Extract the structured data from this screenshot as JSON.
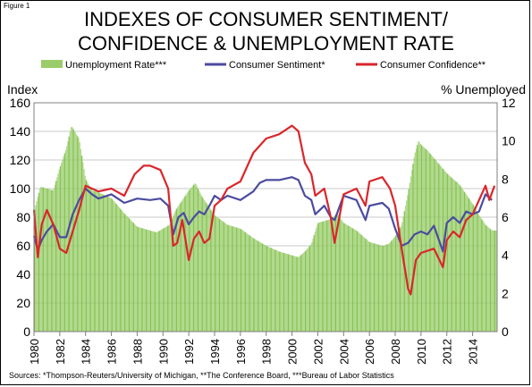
{
  "figure_label": "Figure 1",
  "title_line1": "INDEXES OF CONSUMER SENTIMENT/",
  "title_line2": "CONFIDENCE & UNEMPLOYMENT RATE",
  "source": "Sources:  *Thompson-Reuters/University of Michigan,  **The Conference Board,  ***Bureau of Labor Statistics",
  "colors": {
    "unemployment": "#9ACD6A",
    "sentiment": "#4B4BA0",
    "confidence": "#D9262B",
    "grid": "#c8c8c8"
  },
  "chart_data": {
    "type": "line",
    "ylabel_left": "Index",
    "ylabel_right": "% Unemployed",
    "ylim_left": [
      0,
      160
    ],
    "ylim_right": [
      0,
      12
    ],
    "yticks_left": [
      "0",
      "20",
      "40",
      "60",
      "80",
      "100",
      "120",
      "140",
      "160"
    ],
    "yticks_right": [
      "0",
      "2",
      "4",
      "6",
      "8",
      "10",
      "12"
    ],
    "xlim": [
      1980,
      2015.9
    ],
    "xticks": [
      "1980",
      "1982",
      "1984",
      "1986",
      "1988",
      "1990",
      "1992",
      "1994",
      "1996",
      "1998",
      "2000",
      "2002",
      "2004",
      "2006",
      "2008",
      "2010",
      "2012",
      "2014"
    ],
    "grid": "horizontal",
    "legend_position": "top",
    "series": [
      {
        "name": "Unemployment Rate***",
        "type": "area",
        "axis": "right",
        "x": [
          1980.0,
          1980.5,
          1981.0,
          1981.5,
          1982.0,
          1982.5,
          1982.9,
          1983.5,
          1984.0,
          1984.5,
          1985.0,
          1986.0,
          1987.0,
          1988.0,
          1989.0,
          1989.5,
          1990.0,
          1990.5,
          1991.0,
          1991.5,
          1992.0,
          1992.5,
          1993.0,
          1994.0,
          1995.0,
          1996.0,
          1997.0,
          1998.0,
          1999.0,
          2000.0,
          2000.5,
          2001.0,
          2001.5,
          2002.0,
          2002.5,
          2003.0,
          2003.5,
          2004.0,
          2005.0,
          2006.0,
          2007.0,
          2007.5,
          2008.0,
          2008.5,
          2009.0,
          2009.5,
          2009.8,
          2010.0,
          2010.5,
          2011.0,
          2012.0,
          2013.0,
          2014.0,
          2014.5,
          2015.0,
          2015.5
        ],
        "values": [
          6.3,
          7.6,
          7.5,
          7.4,
          8.6,
          9.6,
          10.8,
          10.1,
          8.0,
          7.4,
          7.3,
          7.0,
          6.2,
          5.5,
          5.3,
          5.2,
          5.4,
          5.6,
          6.4,
          6.9,
          7.4,
          7.8,
          7.1,
          6.1,
          5.6,
          5.4,
          4.9,
          4.5,
          4.2,
          4.0,
          3.9,
          4.2,
          4.6,
          5.7,
          5.8,
          5.9,
          6.2,
          5.7,
          5.3,
          4.7,
          4.5,
          4.6,
          5.0,
          5.6,
          7.3,
          9.3,
          10.0,
          9.8,
          9.5,
          9.1,
          8.3,
          7.7,
          6.7,
          6.1,
          5.6,
          5.3
        ]
      },
      {
        "name": "Consumer Sentiment*",
        "type": "line",
        "axis": "left",
        "x": [
          1980.0,
          1980.3,
          1980.6,
          1981.0,
          1981.5,
          1982.0,
          1982.5,
          1983.0,
          1983.5,
          1984.0,
          1984.5,
          1985.0,
          1986.0,
          1987.0,
          1988.0,
          1989.0,
          1989.8,
          1990.4,
          1990.8,
          1991.2,
          1991.6,
          1992.0,
          1992.4,
          1992.8,
          1993.2,
          1993.6,
          1994.0,
          1994.5,
          1995.0,
          1996.0,
          1997.0,
          1997.5,
          1998.0,
          1999.0,
          2000.0,
          2000.5,
          2001.0,
          2001.5,
          2001.8,
          2002.5,
          2003.0,
          2003.3,
          2004.0,
          2005.0,
          2005.7,
          2006.0,
          2007.0,
          2007.5,
          2008.0,
          2008.5,
          2009.0,
          2009.5,
          2010.0,
          2010.5,
          2011.0,
          2011.7,
          2012.0,
          2012.5,
          2013.0,
          2013.5,
          2014.0,
          2014.5,
          2015.0,
          2015.5
        ],
        "values": [
          67,
          57,
          64,
          70,
          75,
          66,
          66,
          82,
          92,
          100,
          96,
          93,
          96,
          90,
          93,
          92,
          93,
          88,
          68,
          80,
          83,
          75,
          80,
          84,
          82,
          88,
          95,
          92,
          95,
          92,
          98,
          104,
          106,
          106,
          108,
          106,
          95,
          92,
          82,
          88,
          80,
          78,
          95,
          92,
          78,
          88,
          90,
          86,
          72,
          60,
          62,
          68,
          70,
          68,
          74,
          56,
          76,
          80,
          76,
          84,
          82,
          84,
          96,
          92
        ]
      },
      {
        "name": "Consumer Confidence**",
        "type": "line",
        "axis": "left",
        "x": [
          1980.0,
          1980.3,
          1980.6,
          1981.0,
          1981.5,
          1982.0,
          1982.5,
          1983.0,
          1983.5,
          1984.0,
          1984.5,
          1985.0,
          1986.0,
          1987.0,
          1987.8,
          1988.5,
          1989.0,
          1989.8,
          1990.4,
          1990.8,
          1991.1,
          1991.5,
          1992.0,
          1992.4,
          1992.8,
          1993.2,
          1993.6,
          1994.0,
          1994.5,
          1995.0,
          1996.0,
          1997.0,
          1998.0,
          1999.0,
          2000.0,
          2000.5,
          2001.0,
          2001.5,
          2001.8,
          2002.5,
          2003.0,
          2003.3,
          2004.0,
          2005.0,
          2005.7,
          2006.0,
          2007.0,
          2007.6,
          2008.0,
          2008.5,
          2009.0,
          2009.2,
          2009.6,
          2010.0,
          2011.0,
          2011.7,
          2012.0,
          2012.5,
          2013.0,
          2013.5,
          2014.0,
          2014.5,
          2015.0,
          2015.3,
          2015.7
        ],
        "values": [
          85,
          52,
          75,
          85,
          75,
          58,
          55,
          70,
          85,
          102,
          100,
          98,
          100,
          95,
          110,
          116,
          116,
          113,
          100,
          60,
          62,
          78,
          50,
          65,
          70,
          62,
          65,
          88,
          92,
          100,
          105,
          125,
          135,
          138,
          144,
          140,
          118,
          110,
          95,
          100,
          80,
          62,
          96,
          100,
          88,
          105,
          108,
          100,
          88,
          58,
          30,
          26,
          50,
          55,
          58,
          45,
          64,
          70,
          66,
          78,
          82,
          92,
          102,
          92,
          102
        ]
      }
    ]
  }
}
